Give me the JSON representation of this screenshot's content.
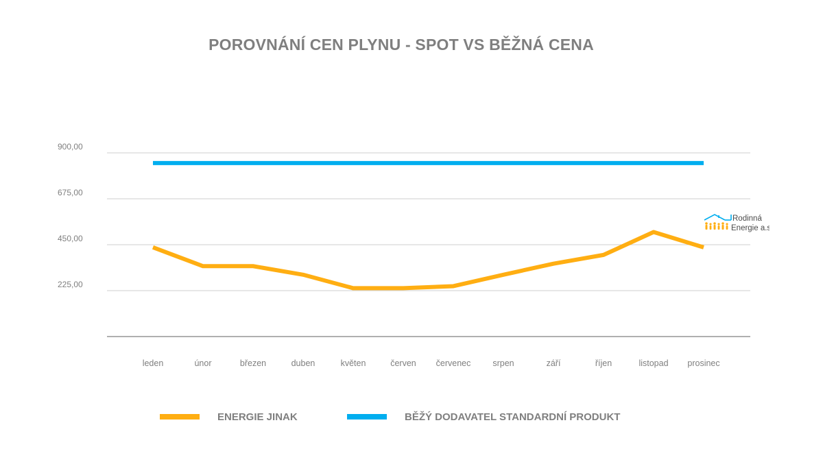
{
  "chart_data": {
    "type": "line",
    "title": "POROVNÁNÍ CEN PLYNU - SPOT VS BĚŽNÁ CENA",
    "categories": [
      "leden",
      "únor",
      "březen",
      "duben",
      "květen",
      "červen",
      "červenec",
      "srpen",
      "září",
      "říjen",
      "listopad",
      "prosinec"
    ],
    "y_ticks": [
      "225,00",
      "450,00",
      "675,00",
      "900,00"
    ],
    "ylim": [
      0,
      900
    ],
    "grid": true,
    "legend_position": "bottom",
    "series": [
      {
        "name": "ENERGIE JINAK",
        "color": "#FFAE12",
        "values": [
          437,
          345,
          345,
          303,
          237,
          237,
          247,
          303,
          357,
          400,
          512,
          437
        ]
      },
      {
        "name": "BĚŽÝ DODAVATEL STANDARDNÍ PRODUKT",
        "color": "#00AEEF",
        "values": [
          850,
          850,
          850,
          850,
          850,
          850,
          850,
          850,
          850,
          850,
          850,
          850
        ]
      }
    ]
  },
  "logo": {
    "line1": "Rodinná",
    "line2": "Energie a.s.",
    "icon": "house-family-icon"
  }
}
